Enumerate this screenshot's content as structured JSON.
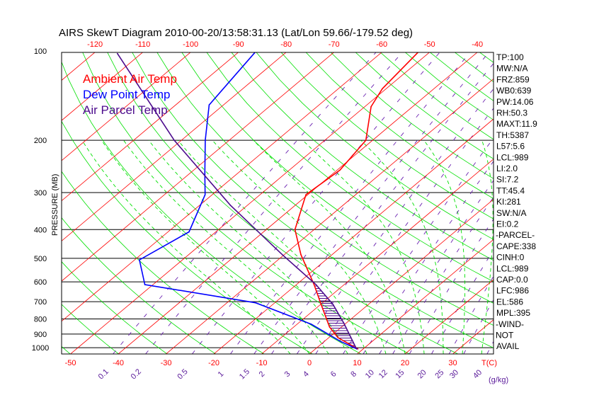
{
  "chart_data": {
    "type": "line",
    "subtype": "skew-t",
    "title": "AIRS SkewT Diagram 2010-00-20/13:58:31.13 (Lat/Lon 59.66/-179.52 deg)",
    "ylabel": "PRESSURE (MB)",
    "xlabel": "T(C)",
    "mixing_ratio_unit": "(g/kg)",
    "pressure_ticks": [
      100,
      200,
      300,
      400,
      500,
      600,
      700,
      800,
      900,
      1000
    ],
    "ylim_mb": [
      1050,
      101
    ],
    "top_temp_ticks": [
      -120,
      -110,
      -100,
      -90,
      -80,
      -70,
      -60,
      -50,
      -40
    ],
    "bottom_temp_ticks": [
      -50,
      -40,
      -30,
      -20,
      -10,
      0,
      10,
      20,
      30
    ],
    "mixing_ratio_ticks": [
      "0.1",
      "0.2",
      "0.5",
      "1",
      "1.5",
      "2",
      "3",
      "4",
      "6",
      "8",
      "10",
      "12",
      "15",
      "20",
      "25",
      "30",
      "40"
    ],
    "legend": [
      {
        "label": "Ambient Air Temp",
        "color": "#ff0000"
      },
      {
        "label": "Dew Point Temp",
        "color": "#0000ff"
      },
      {
        "label": "Air Parcel Temp",
        "color": "#4b0a8c"
      }
    ],
    "series": [
      {
        "name": "Ambient Air Temp",
        "color": "#ff0000",
        "p": [
          101,
          134,
          154,
          200,
          252,
          305,
          400,
          486,
          613,
          715,
          852,
          925,
          1010
        ],
        "t": [
          -52.4,
          -50.8,
          -48.7,
          -41.4,
          -39.4,
          -40.4,
          -34.0,
          -26.5,
          -16.3,
          -9.9,
          -2.5,
          1.9,
          8.9
        ]
      },
      {
        "name": "Dew Point Temp",
        "color": "#0000ff",
        "p": [
          101,
          152,
          200,
          259,
          305,
          407,
          506,
          613,
          706,
          834,
          952,
          1010
        ],
        "t": [
          -86.5,
          -83.0,
          -75.0,
          -66.8,
          -61.5,
          -55.6,
          -59.0,
          -51.7,
          -24.0,
          -7.0,
          3.3,
          8.7
        ]
      },
      {
        "name": "Air Parcel Temp",
        "color": "#4b0a8c",
        "p": [
          102,
          200,
          331,
          486,
          613,
          715,
          828,
          1010
        ],
        "t": [
          -115.0,
          -81.5,
          -53.6,
          -30.4,
          -15.9,
          -7.4,
          -0.4,
          8.6
        ]
      }
    ],
    "cape_region_mb": [
      613,
      1010
    ]
  },
  "stats": [
    "TP:100",
    "MW:N/A",
    "FRZ:859",
    "WB0:639",
    "PW:14.06",
    "RH:50.3",
    "MAXT:11.9",
    "TH:5387",
    "L57:5.6",
    "LCL:989",
    "LI:2.0",
    "SI:7.2",
    "TT:45.4",
    "KI:281",
    "SW:N/A",
    "EI:0.2",
    "-PARCEL-",
    "CAPE:338",
    "CINH:0",
    "LCL:989",
    "CAP:0.0",
    "LFC:986",
    "EL:586",
    "MPL:395",
    "-WIND-",
    "NOT",
    "AVAIL"
  ],
  "colors": {
    "isotherm": "#ff0000",
    "dry_adiabat": "#00e000",
    "moist_adiabat": "#00e000",
    "mixing_ratio": "#6a20b0",
    "isobar": "#000000",
    "hatch": "#4b0a8c"
  }
}
